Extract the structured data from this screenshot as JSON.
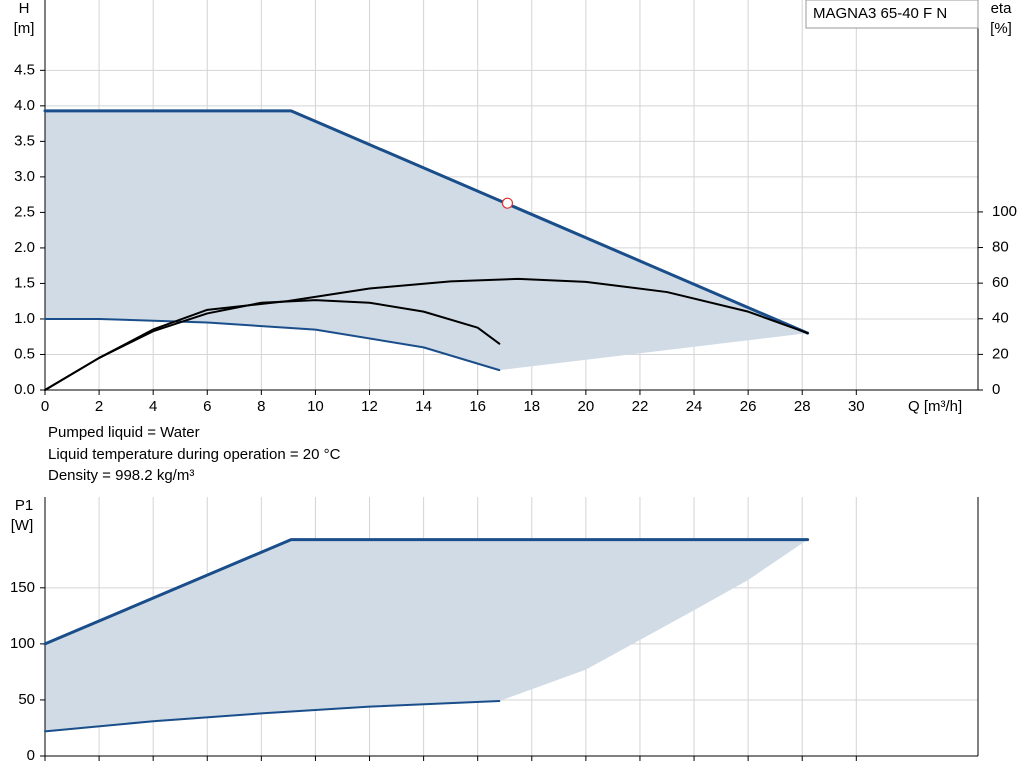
{
  "chart_data": [
    {
      "type": "line",
      "legend_box": "MAGNA3 65-40 F N",
      "ylabel": "H",
      "yunit": "[m]",
      "y2label": "eta",
      "y2unit": "[%]",
      "xlabel": "Q [m³/h]",
      "notes": [
        "Pumped liquid = Water",
        "Liquid temperature during operation = 20 °C",
        "Density = 998.2 kg/m³"
      ],
      "xlim": [
        0,
        34.5
      ],
      "xticks": [
        0,
        2,
        4,
        6,
        8,
        10,
        12,
        14,
        16,
        18,
        20,
        22,
        24,
        26,
        28,
        30
      ],
      "ylim": [
        0,
        5.49
      ],
      "yticks": [
        {
          "value": 0,
          "label": "0.0"
        },
        {
          "value": 0.5,
          "label": "0.5"
        },
        {
          "value": 1,
          "label": "1.0"
        },
        {
          "value": 1.5,
          "label": "1.5"
        },
        {
          "value": 2,
          "label": "2.0"
        },
        {
          "value": 2.5,
          "label": "2.5"
        },
        {
          "value": 3,
          "label": "3.0"
        },
        {
          "value": 3.5,
          "label": "3.5"
        },
        {
          "value": 4,
          "label": "4.0"
        },
        {
          "value": 4.5,
          "label": "4.5"
        }
      ],
      "y2lim": [
        0,
        219
      ],
      "y2ticks": [
        0,
        20,
        40,
        60,
        80,
        100
      ],
      "grid": true,
      "xtick_labels": true,
      "series": [
        {
          "style": "area",
          "color": "#d0dbe6",
          "x": [
            0,
            9.1,
            28.2,
            16.8,
            14,
            10,
            6,
            2,
            0
          ],
          "values": [
            3.93,
            3.93,
            0.8,
            0.28,
            0.6,
            0.85,
            0.95,
            1.0,
            1.0
          ]
        },
        {
          "style": "line",
          "color": "#1a4e8a",
          "width": 3,
          "x": [
            0,
            9.1,
            28.2
          ],
          "values": [
            3.93,
            3.93,
            0.8
          ]
        },
        {
          "style": "line",
          "color": "#1a4e8a",
          "width": 2,
          "x": [
            0,
            2,
            6,
            10,
            14,
            16.8
          ],
          "values": [
            1.0,
            1.0,
            0.95,
            0.85,
            0.6,
            0.28
          ]
        },
        {
          "style": "line",
          "color": "#000000",
          "width": 2,
          "axis": "y2",
          "x": [
            0,
            2,
            4,
            6,
            9,
            12,
            15,
            17.5,
            20,
            23,
            26,
            28.2
          ],
          "values": [
            0,
            18,
            34,
            45,
            50,
            57,
            61,
            62.4,
            60.7,
            55,
            44,
            32
          ]
        },
        {
          "style": "line",
          "color": "#000000",
          "width": 2,
          "axis": "y2",
          "x": [
            0,
            2,
            4,
            6,
            8,
            10,
            12,
            14,
            16,
            16.8
          ],
          "values": [
            0,
            18,
            33,
            43,
            49,
            50.5,
            49,
            44,
            35,
            26
          ]
        },
        {
          "style": "marker",
          "color": "#e03030",
          "x": [
            17.1
          ],
          "values": [
            2.63
          ]
        }
      ]
    },
    {
      "type": "line",
      "ylabel": "P1",
      "yunit": "[W]",
      "xlim": [
        0,
        34.5
      ],
      "xticks": [
        0,
        2,
        4,
        6,
        8,
        10,
        12,
        14,
        16,
        18,
        20,
        22,
        24,
        26,
        28,
        30
      ],
      "ylim": [
        0,
        231
      ],
      "yticks": [
        0,
        50,
        100,
        150
      ],
      "grid": true,
      "xtick_labels": false,
      "series": [
        {
          "style": "area",
          "color": "#d0dbe6",
          "x": [
            0,
            9.1,
            28.2,
            26,
            24,
            20,
            16.8,
            12,
            8,
            4,
            0
          ],
          "values": [
            100,
            193,
            193,
            157,
            130,
            77,
            49,
            44,
            38,
            31,
            22
          ]
        },
        {
          "style": "line",
          "color": "#1a4e8a",
          "width": 3,
          "x": [
            0,
            9.1,
            28.2
          ],
          "values": [
            100,
            193,
            193
          ]
        },
        {
          "style": "line",
          "color": "#1a4e8a",
          "width": 2,
          "x": [
            0,
            4,
            8,
            12,
            16.8
          ],
          "values": [
            22,
            31,
            38,
            44,
            49
          ]
        }
      ]
    }
  ]
}
